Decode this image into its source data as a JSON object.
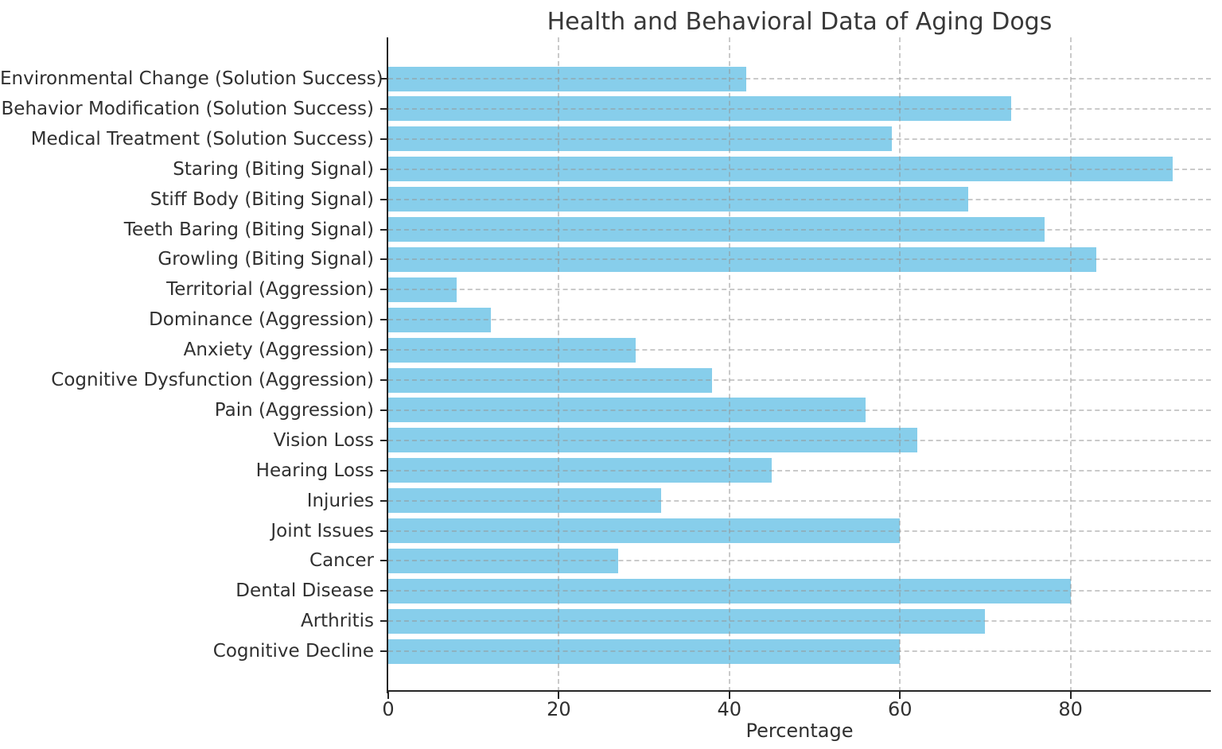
{
  "chart_data": {
    "type": "bar",
    "orientation": "horizontal",
    "title": "Health and Behavioral Data of Aging Dogs",
    "xlabel": "Percentage",
    "ylabel": "",
    "order": "top-to-bottom",
    "categories": [
      "Environmental Change (Solution Success)",
      "Behavior Modification (Solution Success)",
      "Medical Treatment (Solution Success)",
      "Staring (Biting Signal)",
      "Stiff Body (Biting Signal)",
      "Teeth Baring (Biting Signal)",
      "Growling (Biting Signal)",
      "Territorial (Aggression)",
      "Dominance (Aggression)",
      "Anxiety (Aggression)",
      "Cognitive Dysfunction (Aggression)",
      "Pain (Aggression)",
      "Vision Loss",
      "Hearing Loss",
      "Injuries",
      "Joint Issues",
      "Cancer",
      "Dental Disease",
      "Arthritis",
      "Cognitive Decline"
    ],
    "values": [
      42,
      73,
      59,
      92,
      68,
      77,
      83,
      8,
      12,
      29,
      38,
      56,
      62,
      45,
      32,
      60,
      27,
      80,
      70,
      60
    ],
    "xticks": [
      "0",
      "20",
      "40",
      "60",
      "80"
    ],
    "xtick_values": [
      0,
      20,
      40,
      60,
      80
    ],
    "xlim": [
      0,
      96.45
    ],
    "grid": true,
    "grid_style": "dashed",
    "legend": "none",
    "bar_color": "#87ceeb",
    "spine_color": "#262626",
    "grid_color": "#c8c8c8",
    "text_color": "#303030"
  }
}
